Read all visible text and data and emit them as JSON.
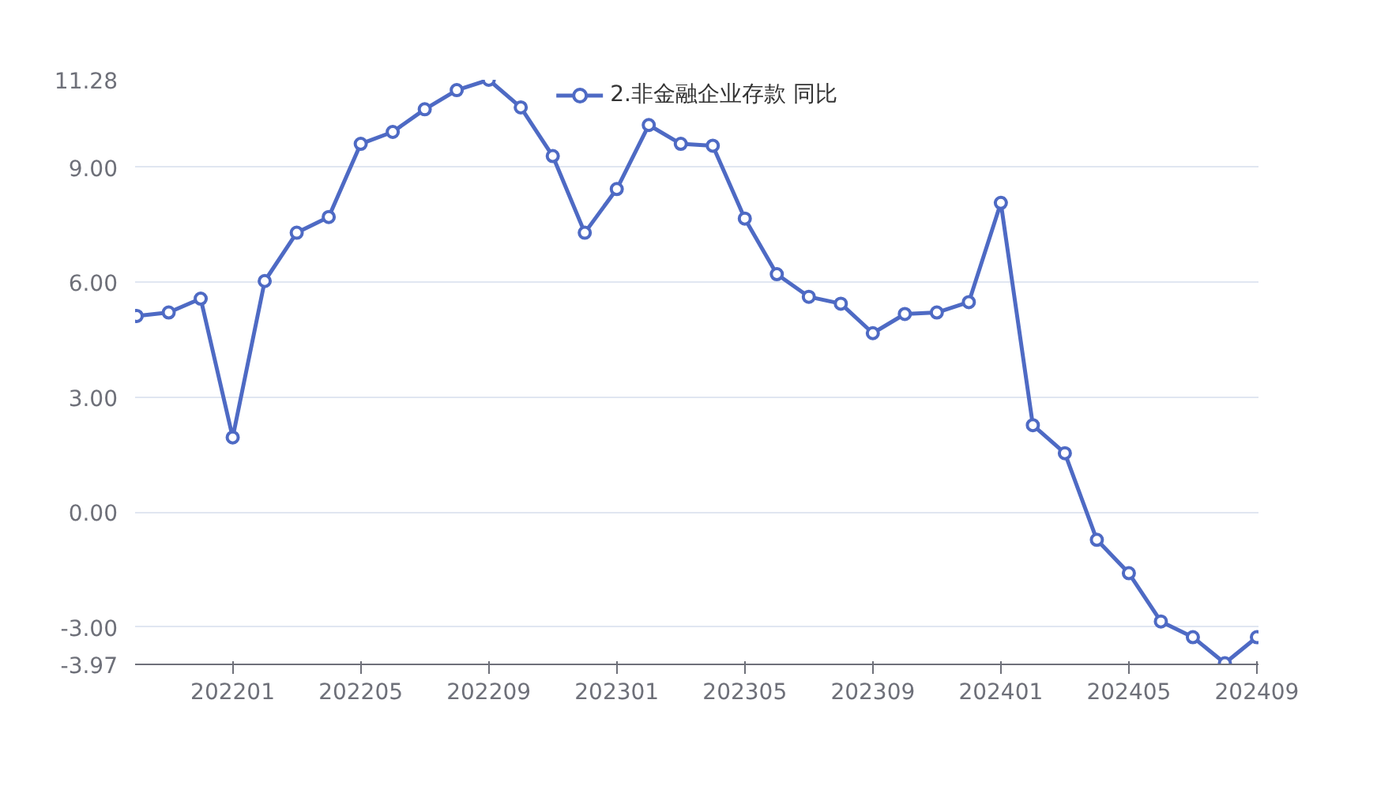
{
  "chart_data": {
    "type": "line",
    "categories": [
      null,
      null,
      null,
      "202201",
      null,
      null,
      null,
      "202205",
      null,
      null,
      null,
      "202209",
      null,
      null,
      null,
      "202301",
      null,
      null,
      null,
      "202305",
      null,
      null,
      null,
      "202309",
      null,
      null,
      null,
      "202401",
      null,
      null,
      null,
      "202405",
      null,
      null,
      null,
      "202409"
    ],
    "series": [
      {
        "name": "2.非金融企业存款 同比",
        "color": "#4e6ac4",
        "values": [
          5.12,
          5.21,
          5.57,
          1.95,
          6.03,
          7.29,
          7.7,
          9.61,
          9.92,
          10.51,
          11.01,
          11.28,
          10.56,
          9.29,
          7.29,
          8.43,
          10.1,
          9.61,
          9.56,
          7.66,
          6.21,
          5.62,
          5.44,
          4.67,
          5.17,
          5.21,
          5.48,
          8.07,
          2.27,
          1.54,
          -0.72,
          -1.59,
          -2.85,
          -3.26,
          -3.94,
          -3.26
        ]
      }
    ],
    "ylim": [
      -3.97,
      11.28
    ],
    "yticks": [
      -3.97,
      {
        "value": -3,
        "label": "-3.00"
      },
      {
        "value": 0,
        "label": "0.00"
      },
      {
        "value": 3,
        "label": "3.00"
      },
      {
        "value": 6,
        "label": "6.00"
      },
      {
        "value": 9,
        "label": "9.00"
      },
      11.28
    ],
    "grid": "y",
    "legend": "top",
    "marker": "circle",
    "line_style": "solid"
  }
}
